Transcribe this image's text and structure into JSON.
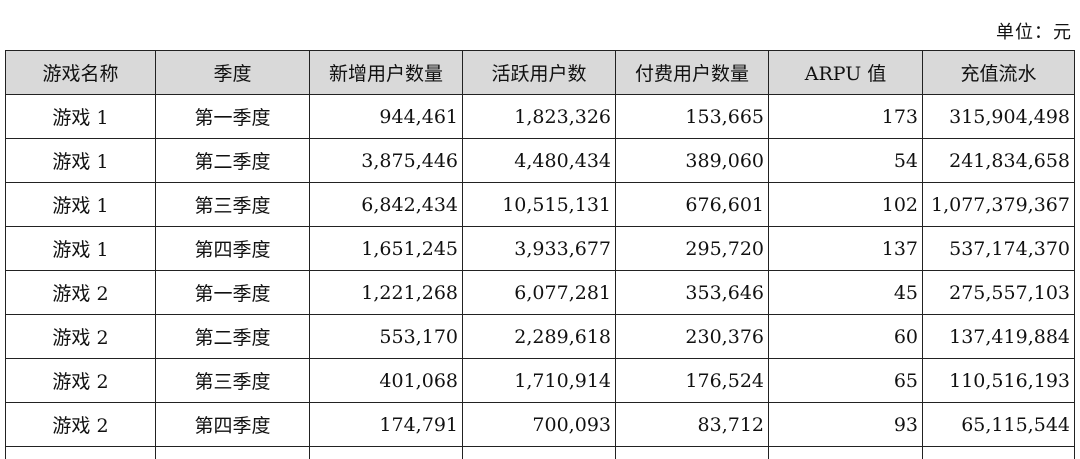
{
  "unit_label": "单位：元",
  "table": {
    "headers": [
      "游戏名称",
      "季度",
      "新增用户数量",
      "活跃用户数",
      "付费用户数量",
      "ARPU 值",
      "充值流水"
    ],
    "rows": [
      [
        "游戏 1",
        "第一季度",
        "944,461",
        "1,823,326",
        "153,665",
        "173",
        "315,904,498"
      ],
      [
        "游戏 1",
        "第二季度",
        "3,875,446",
        "4,480,434",
        "389,060",
        "54",
        "241,834,658"
      ],
      [
        "游戏 1",
        "第三季度",
        "6,842,434",
        "10,515,131",
        "676,601",
        "102",
        "1,077,379,367"
      ],
      [
        "游戏 1",
        "第四季度",
        "1,651,245",
        "3,933,677",
        "295,720",
        "137",
        "537,174,370"
      ],
      [
        "游戏 2",
        "第一季度",
        "1,221,268",
        "6,077,281",
        "353,646",
        "45",
        "275,557,103"
      ],
      [
        "游戏 2",
        "第二季度",
        "553,170",
        "2,289,618",
        "230,376",
        "60",
        "137,419,884"
      ],
      [
        "游戏 2",
        "第三季度",
        "401,068",
        "1,710,914",
        "176,524",
        "65",
        "110,516,193"
      ],
      [
        "游戏 2",
        "第四季度",
        "174,791",
        "700,093",
        "83,712",
        "93",
        "65,115,544"
      ]
    ]
  }
}
